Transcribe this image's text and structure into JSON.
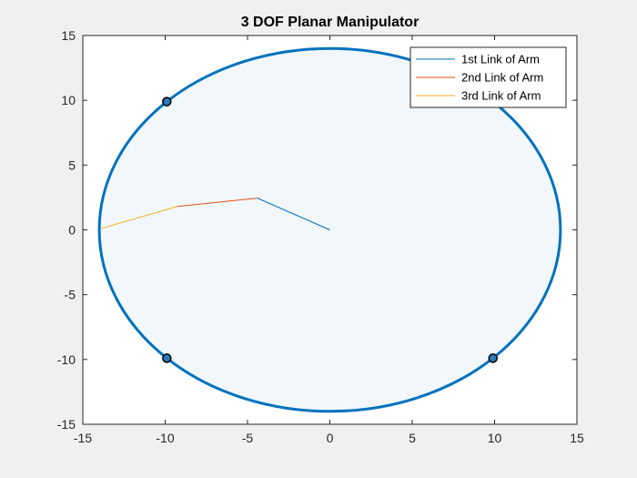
{
  "chart_data": {
    "type": "line",
    "title": "3 DOF Planar Manipulator",
    "xlabel": "",
    "ylabel": "",
    "xlim": [
      -15,
      15
    ],
    "ylim": [
      -15,
      15
    ],
    "xticks": [
      -15,
      -10,
      -5,
      0,
      5,
      10,
      15
    ],
    "yticks": [
      -15,
      -10,
      -5,
      0,
      5,
      10,
      15
    ],
    "xtick_labels": [
      "-15",
      "-10",
      "-5",
      "0",
      "5",
      "10",
      "15"
    ],
    "ytick_labels": [
      "-15",
      "-10",
      "-5",
      "0",
      "5",
      "10",
      "15"
    ],
    "grid": false,
    "legend_position": "top-right",
    "workspace_circle": {
      "center": [
        0,
        0
      ],
      "radius": 14,
      "edge_color": "#0072bd",
      "fill_color": "#f2f7fb"
    },
    "series": [
      {
        "name": "1st Link of Arm",
        "color": "#0072bd",
        "x": [
          0,
          -4.4
        ],
        "y": [
          0,
          2.45
        ]
      },
      {
        "name": "2nd Link of Arm",
        "color": "#d95319",
        "x": [
          -4.4,
          -9.3
        ],
        "y": [
          2.45,
          1.8
        ]
      },
      {
        "name": "3rd Link of Arm",
        "color": "#edb120",
        "x": [
          -9.3,
          -13.9
        ],
        "y": [
          1.8,
          0.1
        ]
      }
    ],
    "markers": {
      "face_color": "#2b7bb9",
      "edge_color": "#000000",
      "points": [
        {
          "x": -9.9,
          "y": 9.9
        },
        {
          "x": -9.9,
          "y": -9.9
        },
        {
          "x": 9.9,
          "y": -9.9
        }
      ]
    }
  }
}
